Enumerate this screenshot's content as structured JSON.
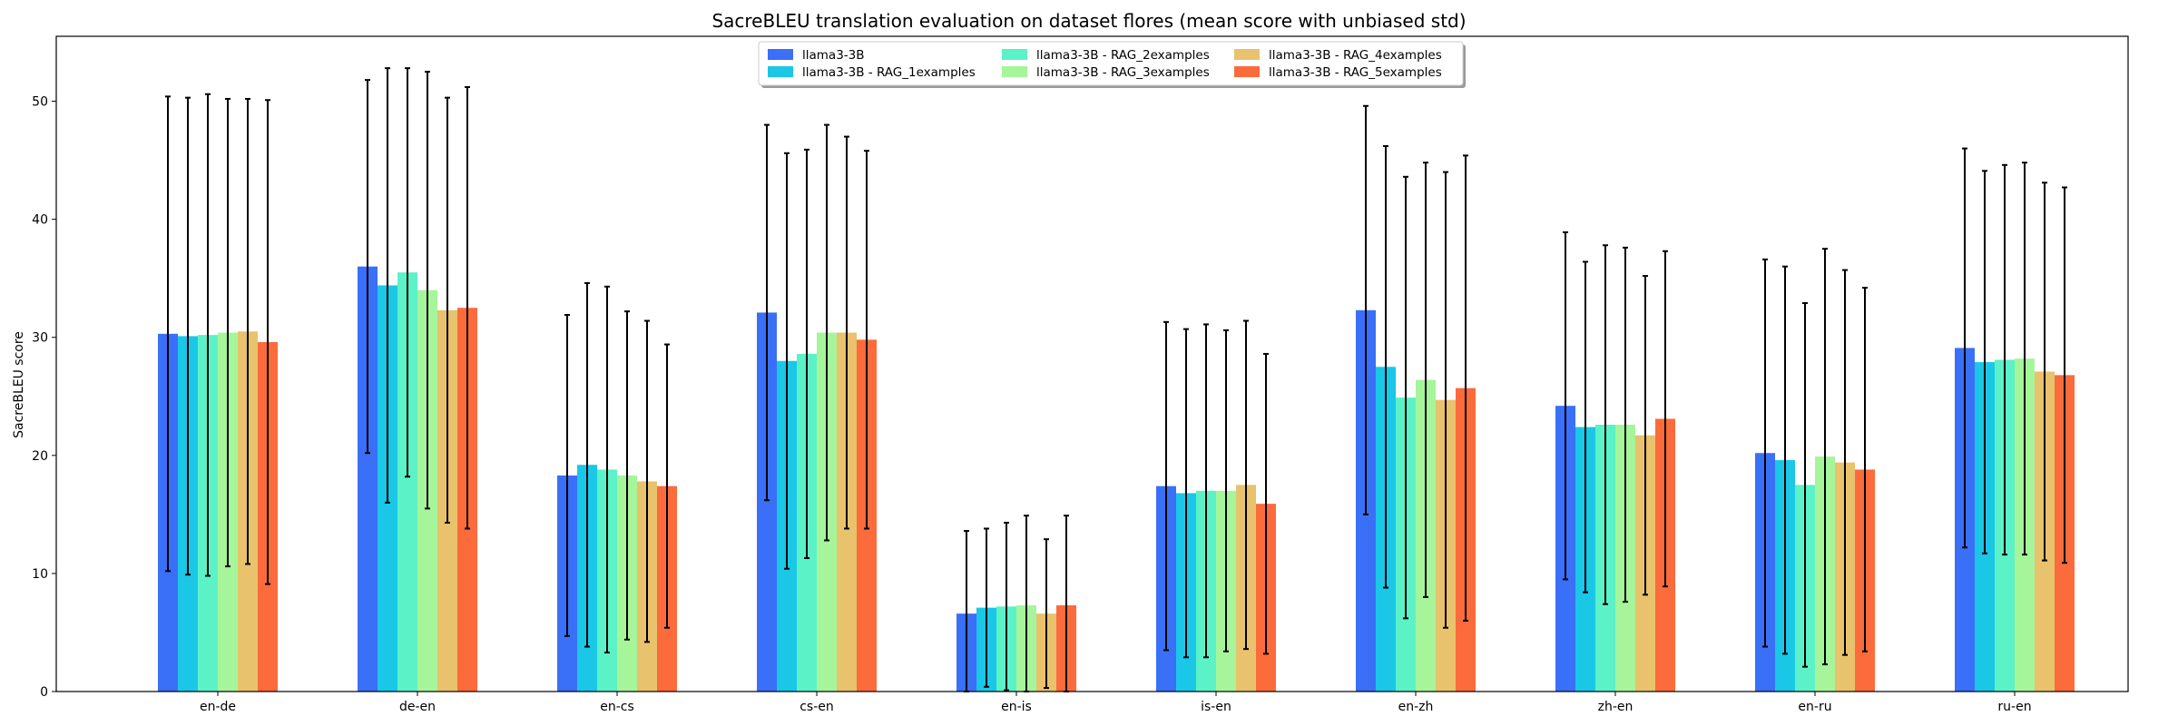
{
  "chart_data": {
    "type": "bar",
    "title": "SacreBLEU translation evaluation on dataset flores (mean score with unbiased std)",
    "xlabel": "",
    "ylabel": "SacreBLEU score",
    "ylim": [
      0,
      55.5
    ],
    "yticks": [
      0,
      10,
      20,
      30,
      40,
      50
    ],
    "grid": false,
    "legend_position": "top-center",
    "legend_columns": 3,
    "categories": [
      "en-de",
      "de-en",
      "en-cs",
      "cs-en",
      "en-is",
      "is-en",
      "en-zh",
      "zh-en",
      "en-ru",
      "ru-en"
    ],
    "series": [
      {
        "name": "llama3-3B",
        "color": "#3a6ff7",
        "values": [
          30.3,
          36.0,
          18.3,
          32.1,
          6.6,
          17.4,
          32.3,
          24.2,
          20.2,
          29.1
        ],
        "errors": [
          20.1,
          15.8,
          13.6,
          15.9,
          7.0,
          13.9,
          17.3,
          14.7,
          16.4,
          16.9
        ]
      },
      {
        "name": "llama3-3B - RAG_1examples",
        "color": "#1ac7e6",
        "values": [
          30.1,
          34.4,
          19.2,
          28.0,
          7.1,
          16.8,
          27.5,
          22.4,
          19.6,
          27.9
        ],
        "errors": [
          20.2,
          18.4,
          15.4,
          17.6,
          6.7,
          13.9,
          18.7,
          14.0,
          16.4,
          16.2
        ]
      },
      {
        "name": "llama3-3B - RAG_2examples",
        "color": "#5cf2c8",
        "values": [
          30.2,
          35.5,
          18.8,
          28.6,
          7.2,
          17.0,
          24.9,
          22.6,
          17.5,
          28.1
        ],
        "errors": [
          20.4,
          17.3,
          15.5,
          17.3,
          7.1,
          14.1,
          18.7,
          15.2,
          15.4,
          16.5
        ]
      },
      {
        "name": "llama3-3B - RAG_3examples",
        "color": "#a6f59a",
        "values": [
          30.4,
          34.0,
          18.3,
          30.4,
          7.3,
          17.0,
          26.4,
          22.6,
          19.9,
          28.2
        ],
        "errors": [
          19.8,
          18.5,
          13.9,
          17.6,
          7.6,
          13.6,
          18.4,
          15.0,
          17.6,
          16.6
        ]
      },
      {
        "name": "llama3-3B - RAG_4examples",
        "color": "#e8c26c",
        "values": [
          30.5,
          32.3,
          17.8,
          30.4,
          6.6,
          17.5,
          24.7,
          21.7,
          19.4,
          27.1
        ],
        "errors": [
          19.7,
          18.0,
          13.6,
          16.6,
          6.3,
          13.9,
          19.3,
          13.5,
          16.3,
          16.0
        ]
      },
      {
        "name": "llama3-3B - RAG_5examples",
        "color": "#fb6b3b",
        "values": [
          29.6,
          32.5,
          17.4,
          29.8,
          7.3,
          15.9,
          25.7,
          23.1,
          18.8,
          26.8
        ],
        "errors": [
          20.5,
          18.7,
          12.0,
          16.0,
          7.6,
          12.7,
          19.7,
          14.2,
          15.4,
          15.9
        ]
      }
    ]
  }
}
